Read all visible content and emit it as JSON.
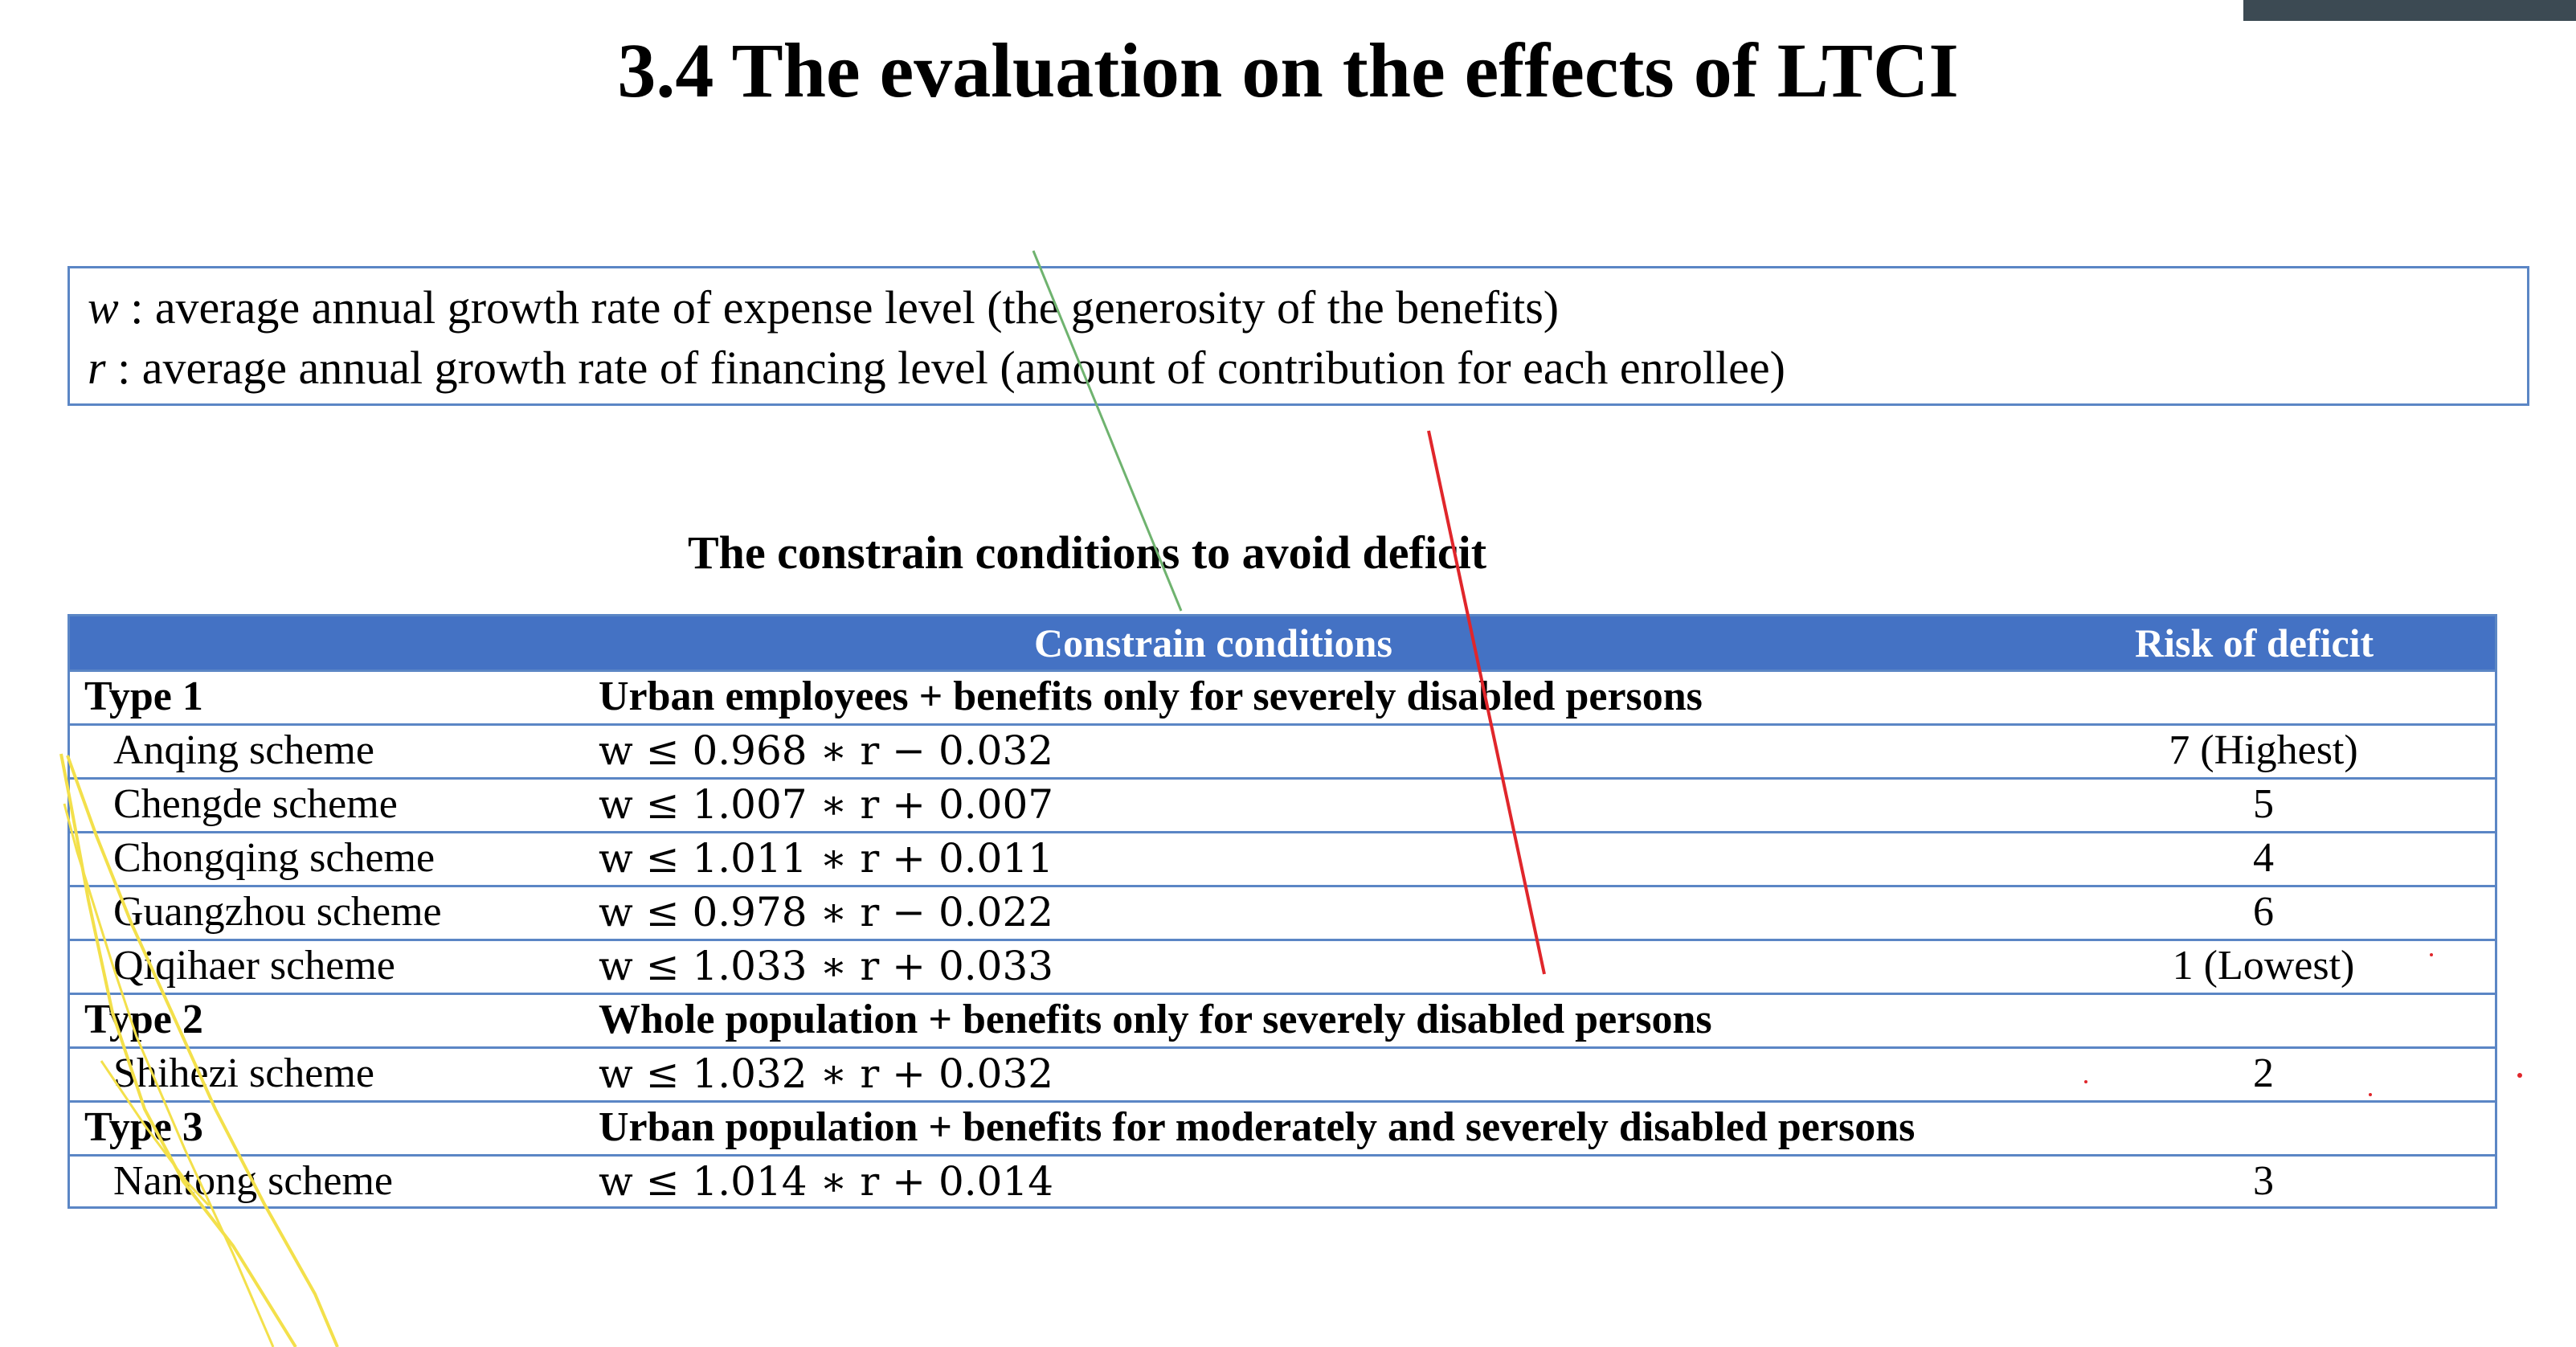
{
  "slide": {
    "title": "3.4 The evaluation on the effects of LTCI"
  },
  "definitions": [
    {
      "symbol": "w",
      "separator": " : ",
      "text": "average annual growth rate of expense level (the generosity of the benefits)"
    },
    {
      "symbol": "r",
      "separator": " : ",
      "text": "average annual growth rate of financing level (amount of contribution for each enrollee)"
    }
  ],
  "table": {
    "caption": "The constrain conditions to avoid deficit",
    "headers": {
      "name": "",
      "conditions": "Constrain conditions",
      "risk": "Risk of deficit"
    },
    "rows": [
      {
        "kind": "type",
        "name": "Type 1",
        "condition": "Urban employees + benefits only for severely disabled persons",
        "risk": ""
      },
      {
        "kind": "scheme",
        "name": "Anqing scheme",
        "condition": "w ≤ 0.968 ∗ r − 0.032",
        "risk": "7  (Highest)"
      },
      {
        "kind": "scheme",
        "name": "Chengde scheme",
        "condition": "w ≤ 1.007 ∗ r + 0.007",
        "risk": "5"
      },
      {
        "kind": "scheme",
        "name": "Chongqing scheme",
        "condition": "w ≤ 1.011 ∗ r + 0.011",
        "risk": "4"
      },
      {
        "kind": "scheme",
        "name": "Guangzhou scheme",
        "condition": "w ≤ 0.978 ∗ r − 0.022",
        "risk": "6"
      },
      {
        "kind": "scheme",
        "name": "Qiqihaer scheme",
        "condition": "w ≤ 1.033 ∗ r + 0.033",
        "risk": "1  (Lowest)"
      },
      {
        "kind": "type",
        "name": "Type 2",
        "condition": "Whole population + benefits only for severely disabled persons",
        "risk": ""
      },
      {
        "kind": "scheme",
        "name": "Shihezi scheme",
        "condition": "w ≤ 1.032 ∗ r + 0.032",
        "risk": "2"
      },
      {
        "kind": "type",
        "name": "Type 3",
        "condition": "Urban population + benefits for moderately and severely disabled persons",
        "risk": ""
      },
      {
        "kind": "scheme",
        "name": "Nantong scheme",
        "condition": "w ≤ 1.014 ∗ r + 0.014",
        "risk": "3"
      }
    ]
  },
  "colors": {
    "header_fill": "#4472c4",
    "border": "#5b86c5",
    "ink_green": "#6fb36f",
    "ink_red": "#e0262b",
    "ink_yellow": "#f3e04b",
    "corner_bar": "#3c4a53"
  }
}
